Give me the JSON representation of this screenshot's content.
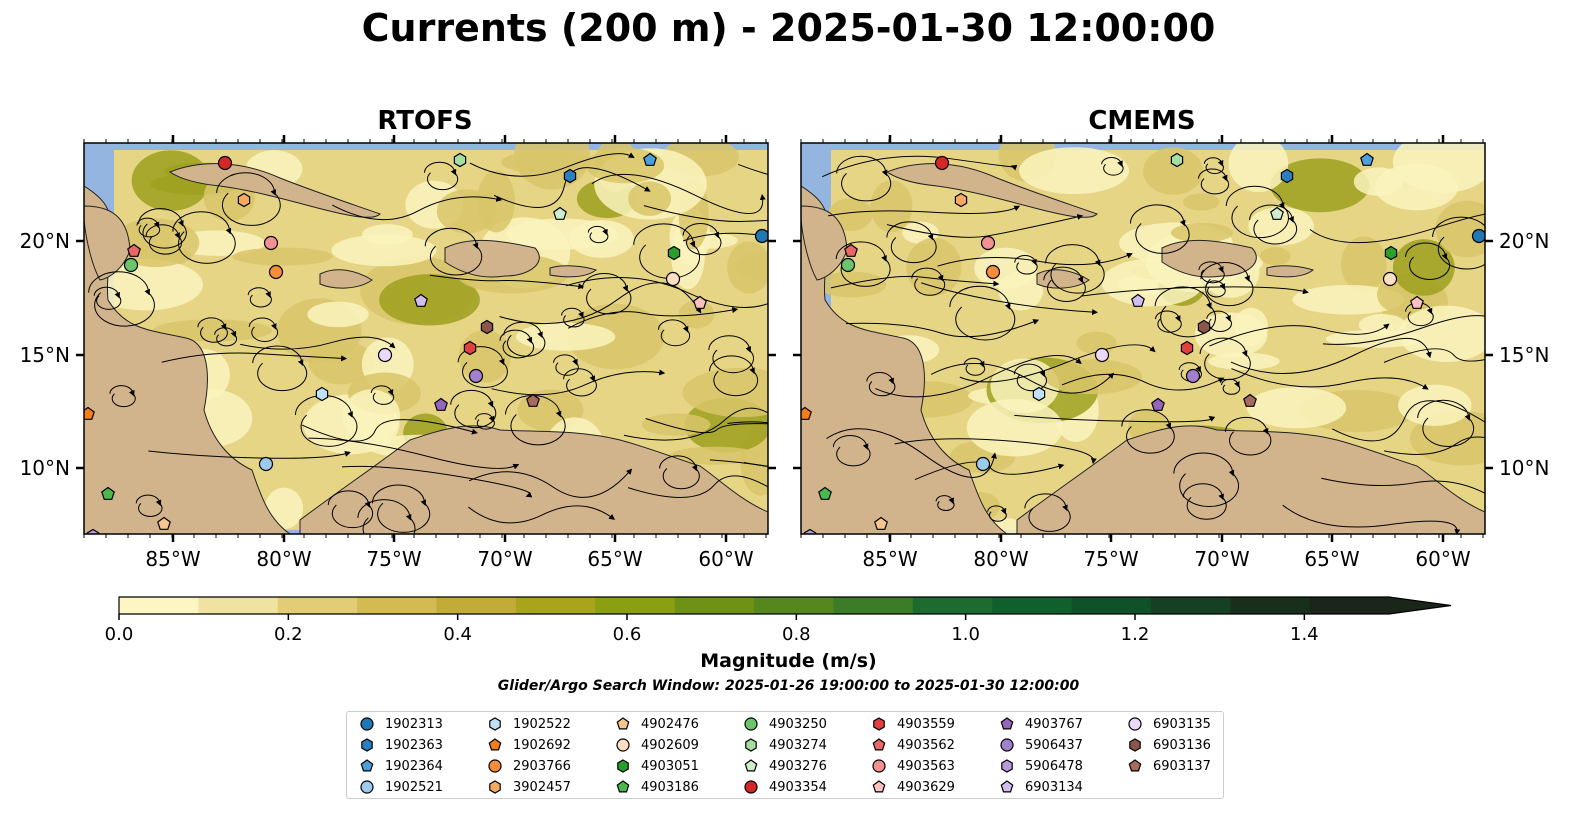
{
  "title": "Currents (200 m) - 2025-01-30 12:00:00",
  "panels": [
    {
      "title": "RTOFS"
    },
    {
      "title": "CMEMS"
    }
  ],
  "axes": {
    "lon_ticks": [
      "85°W",
      "80°W",
      "75°W",
      "70°W",
      "65°W",
      "60°W"
    ],
    "lat_ticks": [
      "20°N",
      "15°N",
      "10°N"
    ]
  },
  "colorbar": {
    "label": "Magnitude (m/s)",
    "ticks": [
      "0.0",
      "0.2",
      "0.4",
      "0.6",
      "0.8",
      "1.0",
      "1.2",
      "1.4"
    ],
    "range": [
      0,
      1.5
    ],
    "extend": "max",
    "colors": [
      "#fdf6c3",
      "#f0e2a0",
      "#e2cd76",
      "#d3bb52",
      "#c3ab38",
      "#a9a51a",
      "#8aa010",
      "#6f9214",
      "#55871e",
      "#3c7c26",
      "#1d6b2e",
      "#10602e",
      "#0f5229",
      "#154024",
      "#18301b",
      "#1b261a"
    ]
  },
  "search_window": "Glider/Argo Search Window: 2025-01-26 19:00:00 to 2025-01-30 12:00:00",
  "colors": {
    "ocean": "#93b5df",
    "land": "#d2b48c",
    "flow_low": "#faf3bd",
    "flow_mid": "#e5d585",
    "flow_high": "#9ea01e"
  },
  "legend": [
    {
      "id": "1902313",
      "marker": "circle",
      "color": "#1f77b4"
    },
    {
      "id": "1902363",
      "marker": "hexagon",
      "color": "#2a7fc0"
    },
    {
      "id": "1902364",
      "marker": "pentagon",
      "color": "#4a9fdc"
    },
    {
      "id": "1902521",
      "marker": "circle",
      "color": "#9ccbee"
    },
    {
      "id": "1902522",
      "marker": "hexagon",
      "color": "#bfe2f8"
    },
    {
      "id": "1902692",
      "marker": "pentagon",
      "color": "#f47e1a"
    },
    {
      "id": "2903766",
      "marker": "circle",
      "color": "#f58d3a"
    },
    {
      "id": "3902457",
      "marker": "hexagon",
      "color": "#f7a960"
    },
    {
      "id": "4902476",
      "marker": "pentagon",
      "color": "#f9c58f"
    },
    {
      "id": "4902609",
      "marker": "circle",
      "color": "#fde0c2"
    },
    {
      "id": "4903051",
      "marker": "hexagon",
      "color": "#2c9e2c"
    },
    {
      "id": "4903186",
      "marker": "pentagon",
      "color": "#4cb84c"
    },
    {
      "id": "4903250",
      "marker": "circle",
      "color": "#6cc56c"
    },
    {
      "id": "4903274",
      "marker": "hexagon",
      "color": "#a5dea0"
    },
    {
      "id": "4903276",
      "marker": "pentagon",
      "color": "#cfeecb"
    },
    {
      "id": "4903354",
      "marker": "circle",
      "color": "#d62728"
    },
    {
      "id": "4903559",
      "marker": "hexagon",
      "color": "#e04040"
    },
    {
      "id": "4903562",
      "marker": "pentagon",
      "color": "#ea6767"
    },
    {
      "id": "4903563",
      "marker": "circle",
      "color": "#f29191"
    },
    {
      "id": "4903629",
      "marker": "pentagon",
      "color": "#fbc1c1"
    },
    {
      "id": "4903767",
      "marker": "pentagon",
      "color": "#9467bd"
    },
    {
      "id": "5906437",
      "marker": "circle",
      "color": "#a37fd0"
    },
    {
      "id": "5906478",
      "marker": "hexagon",
      "color": "#b89ade"
    },
    {
      "id": "6903134",
      "marker": "pentagon",
      "color": "#d2bdf0"
    },
    {
      "id": "6903135",
      "marker": "circle",
      "color": "#ead9fb"
    },
    {
      "id": "6903136",
      "marker": "hexagon",
      "color": "#8c564b"
    },
    {
      "id": "6903137",
      "marker": "pentagon",
      "color": "#a86a5c"
    }
  ]
}
